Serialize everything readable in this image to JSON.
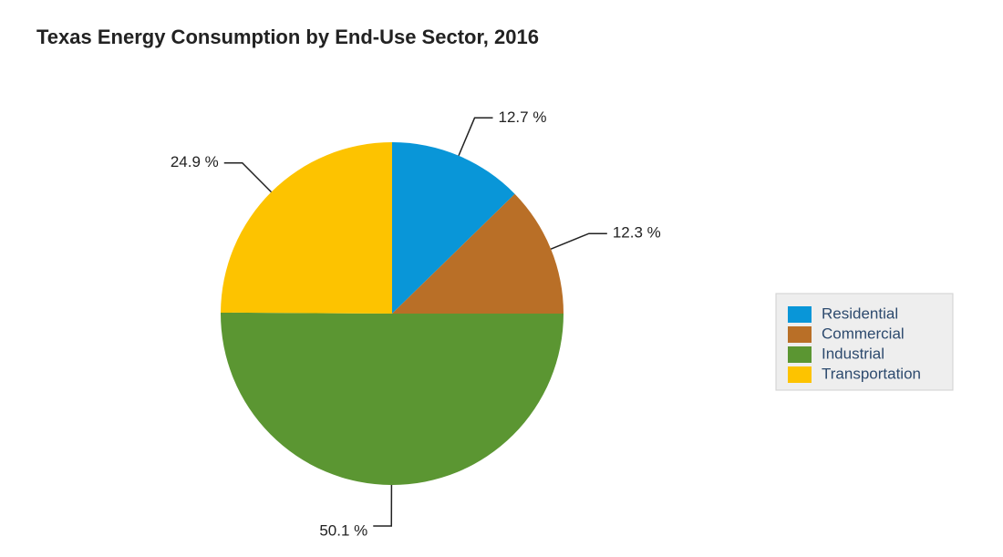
{
  "chart_data": {
    "type": "pie",
    "title": "Texas Energy Consumption by End-Use Sector, 2016",
    "categories": [
      "Residential",
      "Commercial",
      "Industrial",
      "Transportation"
    ],
    "values": [
      12.7,
      12.3,
      50.1,
      24.9
    ],
    "value_labels": [
      "12.7 %",
      "12.3 %",
      "50.1 %",
      "24.9 %"
    ],
    "colors": [
      "#0996d8",
      "#b96f27",
      "#5b9632",
      "#fdc300"
    ],
    "legend": "right"
  }
}
